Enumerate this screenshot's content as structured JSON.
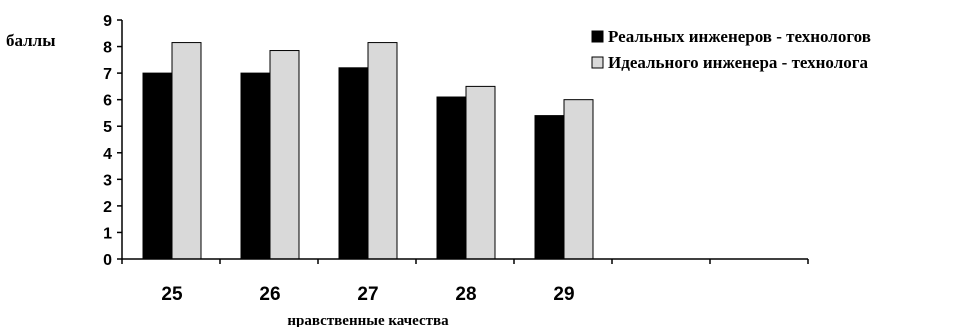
{
  "chart_data": {
    "type": "bar",
    "title": "",
    "ylabel": "баллы",
    "xlabel": "нравственные качества",
    "ylim": [
      0,
      9
    ],
    "yticks": [
      "0",
      "1",
      "2",
      "3",
      "4",
      "5",
      "6",
      "7",
      "8",
      "9"
    ],
    "categories": [
      "25",
      "26",
      "27",
      "28",
      "29",
      "",
      ""
    ],
    "series": [
      {
        "name": "Реальных инженеров - технологов",
        "color": "#000000",
        "values": [
          7.0,
          7.0,
          7.2,
          6.1,
          5.4,
          null,
          null
        ]
      },
      {
        "name": "Идеального инженера - технолога",
        "color": "#d9d9d9",
        "values": [
          8.15,
          7.85,
          8.15,
          6.5,
          6.0,
          null,
          null
        ]
      }
    ],
    "grid": false,
    "legend": "top-right"
  }
}
